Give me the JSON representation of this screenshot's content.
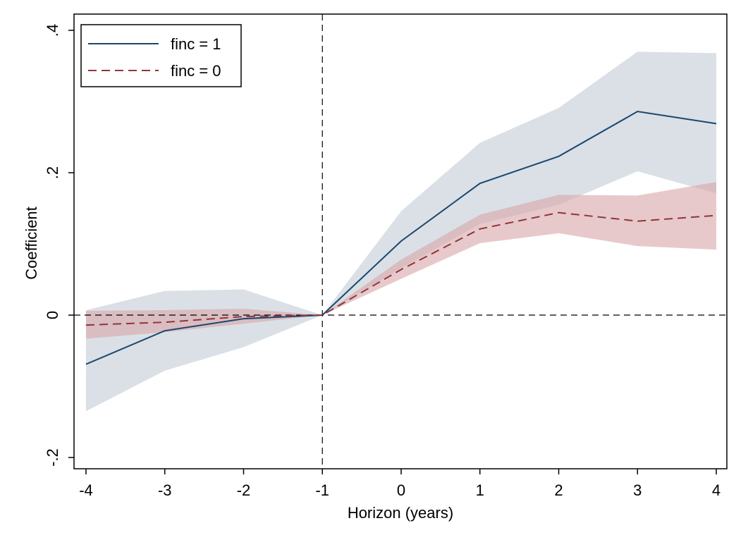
{
  "chart_data": {
    "type": "line",
    "x_label": "Horizon (years)",
    "y_label": "Coefficient",
    "x": [
      -4,
      -3,
      -2,
      -1,
      0,
      1,
      2,
      3,
      4
    ],
    "series": [
      {
        "name": "finc = 1",
        "color": "#1a476f",
        "band_color": "#c2ccd6",
        "line_style": "solid",
        "values": [
          -0.069,
          -0.022,
          -0.005,
          0,
          0.104,
          0.185,
          0.223,
          0.286,
          0.269
        ],
        "upper": [
          0.007,
          0.034,
          0.036,
          0,
          0.146,
          0.242,
          0.291,
          0.37,
          0.368
        ],
        "lower": [
          -0.135,
          -0.078,
          -0.045,
          0,
          0.066,
          0.128,
          0.155,
          0.202,
          0.171
        ]
      },
      {
        "name": "finc = 0",
        "color": "#90353b",
        "band_color": "#d9a5a8",
        "line_style": "dashed",
        "values": [
          -0.014,
          -0.01,
          -0.002,
          0,
          0.064,
          0.121,
          0.144,
          0.132,
          0.14
        ],
        "upper": [
          0.006,
          0.007,
          0.009,
          0,
          0.078,
          0.141,
          0.169,
          0.168,
          0.187
        ],
        "lower": [
          -0.033,
          -0.024,
          -0.012,
          0,
          0.051,
          0.101,
          0.115,
          0.097,
          0.092
        ]
      }
    ],
    "xlim": [
      -4.152,
      4.134
    ],
    "ylim": [
      -0.2158,
      0.4228
    ],
    "xticks": [
      -4,
      -3,
      -2,
      -1,
      0,
      1,
      2,
      3,
      4
    ],
    "yticks": [
      {
        "value": -0.2,
        "label": "-.2"
      },
      0,
      {
        "value": 0.2,
        "label": ".2"
      },
      {
        "value": 0.4,
        "label": ".4"
      }
    ],
    "xline": -1,
    "yline": 0,
    "legend": "top-left"
  }
}
